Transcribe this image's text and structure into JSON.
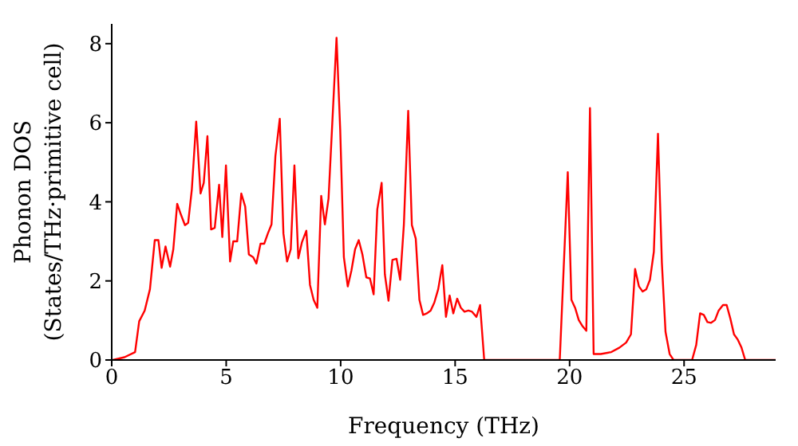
{
  "chart_data": {
    "type": "line",
    "xlabel": "Frequency (THz)",
    "ylabel": "Phonon DOS\n(States/THz·primitive cell)",
    "xlim": [
      0,
      29
    ],
    "ylim": [
      0,
      8.5
    ],
    "xticks": [
      0,
      5,
      10,
      15,
      20,
      25
    ],
    "yticks": [
      0,
      2,
      4,
      6,
      8
    ],
    "grid": false,
    "legend": false,
    "marker": "none",
    "line_style": "solid",
    "series": [
      {
        "color": "#ff0000",
        "x": [
          0.05,
          0.56,
          1.02,
          1.2,
          1.44,
          1.67,
          1.88,
          2.04,
          2.18,
          2.35,
          2.55,
          2.69,
          2.86,
          3.02,
          3.2,
          3.34,
          3.5,
          3.69,
          3.88,
          4.02,
          4.18,
          4.34,
          4.5,
          4.69,
          4.83,
          4.99,
          5.17,
          5.31,
          5.48,
          5.66,
          5.83,
          5.99,
          6.18,
          6.32,
          6.5,
          6.66,
          6.82,
          6.98,
          7.15,
          7.34,
          7.5,
          7.66,
          7.82,
          7.98,
          8.15,
          8.31,
          8.5,
          8.66,
          8.82,
          8.98,
          9.15,
          9.31,
          9.47,
          9.82,
          9.98,
          10.14,
          10.31,
          10.47,
          10.63,
          10.79,
          10.95,
          11.12,
          11.28,
          11.44,
          11.6,
          11.79,
          11.93,
          12.09,
          12.26,
          12.44,
          12.6,
          12.76,
          12.95,
          13.11,
          13.28,
          13.44,
          13.6,
          13.77,
          13.93,
          14.09,
          14.26,
          14.44,
          14.6,
          14.76,
          14.92,
          15.09,
          15.25,
          15.41,
          15.58,
          15.74,
          15.93,
          16.09,
          16.27,
          19.57,
          19.92,
          20.08,
          20.24,
          20.4,
          20.57,
          20.73,
          20.89,
          21.05,
          21.36,
          21.82,
          22.17,
          22.47,
          22.68,
          22.86,
          23.03,
          23.19,
          23.35,
          23.51,
          23.68,
          23.86,
          24.03,
          24.19,
          24.37,
          24.54,
          25.35,
          25.53,
          25.7,
          25.86,
          26.02,
          26.18,
          26.35,
          26.51,
          26.7,
          26.86,
          27.02,
          27.18,
          27.35,
          27.51,
          27.67,
          29
        ],
        "values": [
          0,
          0.07,
          0.2,
          0.98,
          1.25,
          1.79,
          3.03,
          3.03,
          2.33,
          2.87,
          2.36,
          2.8,
          3.95,
          3.68,
          3.41,
          3.47,
          4.32,
          6.03,
          4.21,
          4.48,
          5.66,
          3.3,
          3.34,
          4.43,
          3.11,
          4.92,
          2.49,
          3.0,
          3.0,
          4.21,
          3.88,
          2.67,
          2.6,
          2.44,
          2.94,
          2.94,
          3.2,
          3.43,
          5.16,
          6.1,
          3.2,
          2.49,
          2.8,
          4.92,
          2.57,
          2.98,
          3.27,
          1.9,
          1.52,
          1.32,
          4.15,
          3.43,
          4.08,
          8.15,
          5.83,
          2.6,
          1.86,
          2.26,
          2.8,
          3.03,
          2.67,
          2.09,
          2.06,
          1.66,
          3.81,
          4.48,
          2.17,
          1.5,
          2.53,
          2.56,
          2.03,
          3.41,
          6.3,
          3.41,
          3.07,
          1.52,
          1.14,
          1.18,
          1.25,
          1.45,
          1.79,
          2.4,
          1.09,
          1.63,
          1.18,
          1.55,
          1.32,
          1.22,
          1.25,
          1.22,
          1.09,
          1.39,
          0,
          0,
          4.75,
          1.52,
          1.32,
          1.01,
          0.85,
          0.74,
          6.37,
          0.15,
          0.15,
          0.2,
          0.31,
          0.44,
          0.65,
          2.3,
          1.86,
          1.73,
          1.79,
          2.03,
          2.74,
          5.72,
          2.46,
          0.71,
          0.15,
          0,
          0,
          0.38,
          1.18,
          1.14,
          0.96,
          0.94,
          1.01,
          1.25,
          1.39,
          1.39,
          1.05,
          0.65,
          0.51,
          0.31,
          0,
          0
        ]
      }
    ]
  }
}
